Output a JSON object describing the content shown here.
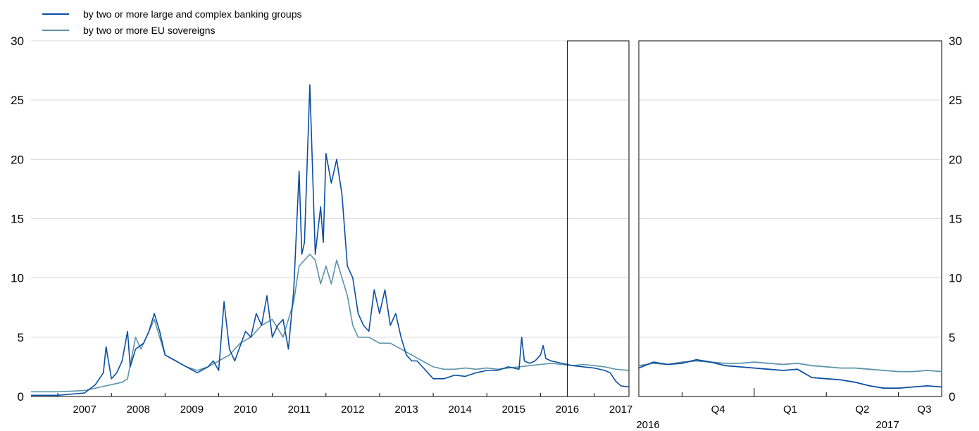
{
  "colors": {
    "banks": "#0b4ea2",
    "sovereigns": "#5b93a8",
    "grid": "#d9d9d9",
    "axis": "#000000"
  },
  "legend": [
    {
      "label": "by two or more large and complex banking groups",
      "color": "#0b4ea2"
    },
    {
      "label": "by two or more EU sovereigns",
      "color": "#5b93a8"
    }
  ],
  "chart_data": [
    {
      "type": "line",
      "panel": "main",
      "x_labels": [
        "2007",
        "2008",
        "2009",
        "2010",
        "2011",
        "2012",
        "2013",
        "2014",
        "2015",
        "2016",
        "2017"
      ],
      "x_range": [
        2006.5,
        2017.65
      ],
      "ylim": [
        0,
        30
      ],
      "y_ticks": [
        "0",
        "5",
        "10",
        "15",
        "20",
        "25",
        "30"
      ],
      "highlight_range": [
        2016.5,
        2017.65
      ],
      "grid": true,
      "series": [
        {
          "name": "by two or more large and complex banking groups",
          "x": [
            2006.5,
            2007.0,
            2007.5,
            2007.7,
            2007.85,
            2007.9,
            2008.0,
            2008.1,
            2008.2,
            2008.3,
            2008.35,
            2008.45,
            2008.6,
            2008.7,
            2008.8,
            2008.9,
            2009.0,
            2009.2,
            2009.4,
            2009.6,
            2009.8,
            2009.9,
            2010.0,
            2010.1,
            2010.2,
            2010.3,
            2010.5,
            2010.6,
            2010.7,
            2010.8,
            2010.9,
            2011.0,
            2011.1,
            2011.2,
            2011.3,
            2011.4,
            2011.5,
            2011.55,
            2011.6,
            2011.7,
            2011.8,
            2011.9,
            2011.95,
            2012.0,
            2012.1,
            2012.2,
            2012.3,
            2012.4,
            2012.5,
            2012.6,
            2012.7,
            2012.8,
            2012.9,
            2013.0,
            2013.1,
            2013.2,
            2013.3,
            2013.4,
            2013.5,
            2013.6,
            2013.7,
            2013.8,
            2013.9,
            2014.0,
            2014.2,
            2014.4,
            2014.6,
            2014.8,
            2015.0,
            2015.2,
            2015.4,
            2015.6,
            2015.65,
            2015.7,
            2015.8,
            2015.9,
            2016.0,
            2016.05,
            2016.1,
            2016.2,
            2016.4,
            2016.6,
            2016.8,
            2017.0,
            2017.2,
            2017.3,
            2017.4,
            2017.5,
            2017.65
          ],
          "y": [
            0.1,
            0.1,
            0.3,
            1.0,
            2.0,
            4.2,
            1.5,
            2.0,
            3.0,
            5.5,
            2.5,
            4.0,
            4.5,
            5.5,
            7.0,
            5.5,
            3.5,
            3.0,
            2.5,
            2.0,
            2.5,
            3.0,
            2.2,
            8.0,
            4.0,
            3.0,
            5.5,
            5.0,
            7.0,
            6.0,
            8.5,
            5.0,
            6.0,
            6.5,
            4.0,
            9.0,
            19.0,
            12.0,
            13.0,
            26.3,
            12.0,
            16.0,
            13.0,
            20.5,
            18.0,
            20.0,
            17.0,
            11.0,
            10.0,
            7.0,
            6.0,
            5.5,
            9.0,
            7.0,
            9.0,
            6.0,
            7.0,
            5.0,
            3.5,
            3.0,
            3.0,
            2.5,
            2.0,
            1.5,
            1.5,
            1.8,
            1.7,
            2.0,
            2.2,
            2.2,
            2.5,
            2.3,
            5.0,
            3.0,
            2.8,
            3.0,
            3.5,
            4.3,
            3.2,
            3.0,
            2.8,
            2.6,
            2.5,
            2.4,
            2.2,
            2.0,
            1.3,
            0.9,
            0.8
          ]
        },
        {
          "name": "by two or more EU sovereigns",
          "x": [
            2006.5,
            2007.0,
            2007.5,
            2007.8,
            2008.0,
            2008.2,
            2008.3,
            2008.45,
            2008.55,
            2008.7,
            2008.8,
            2008.9,
            2009.0,
            2009.2,
            2009.4,
            2009.6,
            2009.8,
            2010.0,
            2010.2,
            2010.4,
            2010.6,
            2010.8,
            2011.0,
            2011.2,
            2011.4,
            2011.5,
            2011.6,
            2011.7,
            2011.8,
            2011.9,
            2012.0,
            2012.1,
            2012.2,
            2012.3,
            2012.4,
            2012.5,
            2012.6,
            2012.8,
            2013.0,
            2013.2,
            2013.4,
            2013.6,
            2013.8,
            2014.0,
            2014.2,
            2014.4,
            2014.6,
            2014.8,
            2015.0,
            2015.2,
            2015.4,
            2015.6,
            2015.8,
            2016.0,
            2016.2,
            2016.4,
            2016.6,
            2016.8,
            2017.0,
            2017.2,
            2017.4,
            2017.65
          ],
          "y": [
            0.4,
            0.4,
            0.5,
            0.8,
            1.0,
            1.2,
            1.5,
            5.0,
            4.0,
            5.5,
            6.5,
            5.0,
            3.5,
            3.0,
            2.5,
            2.2,
            2.5,
            3.0,
            3.5,
            4.5,
            5.0,
            6.0,
            6.5,
            5.0,
            8.0,
            11.0,
            11.5,
            12.0,
            11.5,
            9.5,
            11.0,
            9.5,
            11.5,
            10.0,
            8.5,
            6.0,
            5.0,
            5.0,
            4.5,
            4.5,
            4.0,
            3.5,
            3.0,
            2.5,
            2.3,
            2.3,
            2.4,
            2.3,
            2.4,
            2.3,
            2.4,
            2.5,
            2.6,
            2.7,
            2.8,
            2.7,
            2.6,
            2.7,
            2.6,
            2.5,
            2.3,
            2.2
          ]
        }
      ]
    },
    {
      "type": "line",
      "panel": "zoom",
      "x_labels": [
        "Q4",
        "Q1",
        "Q2",
        "Q3"
      ],
      "year_labels": [
        "2016",
        "2017"
      ],
      "x_range": [
        2016.6,
        2017.65
      ],
      "ylim": [
        0,
        30
      ],
      "y_ticks": [
        "0",
        "5",
        "10",
        "15",
        "20",
        "25",
        "30"
      ],
      "grid": true,
      "series": [
        {
          "name": "by two or more large and complex banking groups",
          "x": [
            2016.6,
            2016.65,
            2016.7,
            2016.75,
            2016.8,
            2016.85,
            2016.9,
            2016.95,
            2017.0,
            2017.05,
            2017.1,
            2017.15,
            2017.2,
            2017.25,
            2017.3,
            2017.35,
            2017.4,
            2017.45,
            2017.5,
            2017.55,
            2017.6,
            2017.65
          ],
          "y": [
            2.4,
            2.9,
            2.7,
            2.8,
            3.1,
            2.9,
            2.6,
            2.5,
            2.4,
            2.3,
            2.2,
            2.3,
            1.6,
            1.5,
            1.4,
            1.2,
            0.9,
            0.7,
            0.7,
            0.8,
            0.9,
            0.8
          ]
        },
        {
          "name": "by two or more EU sovereigns",
          "x": [
            2016.6,
            2016.65,
            2016.7,
            2016.75,
            2016.8,
            2016.85,
            2016.9,
            2016.95,
            2017.0,
            2017.05,
            2017.1,
            2017.15,
            2017.2,
            2017.25,
            2017.3,
            2017.35,
            2017.4,
            2017.45,
            2017.5,
            2017.55,
            2017.6,
            2017.65
          ],
          "y": [
            2.6,
            2.8,
            2.7,
            2.9,
            3.0,
            2.9,
            2.8,
            2.8,
            2.9,
            2.8,
            2.7,
            2.8,
            2.6,
            2.5,
            2.4,
            2.4,
            2.3,
            2.2,
            2.1,
            2.1,
            2.2,
            2.1
          ]
        }
      ]
    }
  ]
}
